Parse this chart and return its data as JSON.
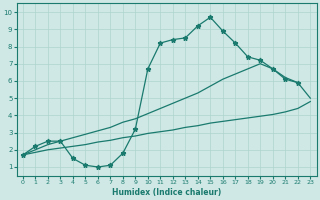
{
  "xlabel": "Humidex (Indice chaleur)",
  "xlim": [
    -0.5,
    23.5
  ],
  "ylim": [
    0.5,
    10.5
  ],
  "xticks": [
    0,
    1,
    2,
    3,
    4,
    5,
    6,
    7,
    8,
    9,
    10,
    11,
    12,
    13,
    14,
    15,
    16,
    17,
    18,
    19,
    20,
    21,
    22,
    23
  ],
  "yticks": [
    1,
    2,
    3,
    4,
    5,
    6,
    7,
    8,
    9,
    10
  ],
  "bg_color": "#cfe8e5",
  "line_color": "#1a7a6e",
  "grid_color": "#afd4cf",
  "line1_x": [
    0,
    1,
    2,
    3,
    4,
    5,
    6,
    7,
    8,
    9,
    10,
    11,
    12,
    13,
    14,
    15,
    16,
    17,
    18,
    19,
    20,
    21,
    22
  ],
  "line1_y": [
    1.7,
    2.2,
    2.5,
    2.5,
    1.5,
    1.1,
    1.0,
    1.1,
    1.8,
    3.2,
    6.7,
    8.2,
    8.4,
    8.5,
    9.2,
    9.7,
    8.9,
    8.2,
    7.4,
    7.2,
    6.7,
    6.1,
    5.9
  ],
  "line2_x": [
    0,
    1,
    2,
    3,
    4,
    5,
    6,
    7,
    8,
    9,
    10,
    11,
    12,
    13,
    14,
    15,
    16,
    17,
    18,
    19,
    20,
    21,
    22,
    23
  ],
  "line2_y": [
    1.7,
    2.0,
    2.3,
    2.5,
    2.7,
    2.9,
    3.1,
    3.3,
    3.6,
    3.8,
    4.1,
    4.4,
    4.7,
    5.0,
    5.3,
    5.7,
    6.1,
    6.4,
    6.7,
    7.0,
    6.7,
    6.2,
    5.9,
    5.0
  ],
  "line3_x": [
    0,
    1,
    2,
    3,
    4,
    5,
    6,
    7,
    8,
    9,
    10,
    11,
    12,
    13,
    14,
    15,
    16,
    17,
    18,
    19,
    20,
    21,
    22,
    23
  ],
  "line3_y": [
    1.7,
    1.85,
    2.0,
    2.1,
    2.2,
    2.3,
    2.45,
    2.55,
    2.7,
    2.8,
    2.95,
    3.05,
    3.15,
    3.3,
    3.4,
    3.55,
    3.65,
    3.75,
    3.85,
    3.95,
    4.05,
    4.2,
    4.4,
    4.8
  ]
}
